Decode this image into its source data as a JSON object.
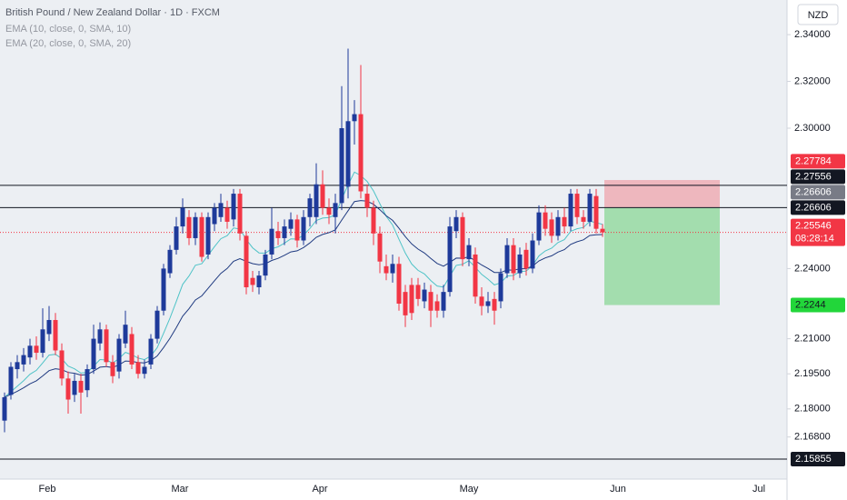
{
  "chart_data": {
    "type": "candlestick",
    "title": "British Pound / New Zealand Dollar · 1D · FXCM",
    "indicators": [
      {
        "name": "EMA (10, close, 0, SMA, 10)",
        "color": "#4fc3c7",
        "period": 10
      },
      {
        "name": "EMA (20, close, 0, SMA, 20)",
        "color": "#1f3a80",
        "period": 20
      }
    ],
    "currency": "NZD",
    "up_color": "#1e3a9a",
    "down_color": "#f23645",
    "ylim": [
      2.15,
      2.3548
    ],
    "yticks": [
      {
        "value": 2.34,
        "label": "2.34000"
      },
      {
        "value": 2.32,
        "label": "2.32000"
      },
      {
        "value": 2.3,
        "label": "2.30000"
      },
      {
        "value": 2.24,
        "label": "2.24000"
      },
      {
        "value": 2.21,
        "label": "2.21000"
      },
      {
        "value": 2.195,
        "label": "2.19500"
      },
      {
        "value": 2.18,
        "label": "2.18000"
      },
      {
        "value": 2.168,
        "label": "2.16800"
      }
    ],
    "x_labels": [
      "Feb",
      "Mar",
      "Apr",
      "May",
      "Jun",
      "Jul"
    ],
    "open": [
      2.175,
      2.186,
      2.197,
      2.199,
      2.202,
      2.207,
      2.204,
      2.212,
      2.218,
      2.205,
      2.193,
      2.186,
      2.192,
      2.188,
      2.197,
      2.208,
      2.214,
      2.2,
      2.196,
      2.208,
      2.212,
      2.2,
      2.195,
      2.199,
      2.21,
      2.222,
      2.238,
      2.248,
      2.258,
      2.262,
      2.253,
      2.262,
      2.246,
      2.259,
      2.262,
      2.266,
      2.261,
      2.272,
      2.254,
      2.236,
      2.232,
      2.237,
      2.246,
      2.256,
      2.253,
      2.257,
      2.261,
      2.252,
      2.262,
      2.262,
      2.276,
      2.266,
      2.262,
      2.268,
      2.275,
      2.303,
      2.306,
      2.272,
      2.266,
      2.255,
      2.241,
      2.238,
      2.242,
      2.23,
      2.233,
      2.233,
      2.226,
      2.23,
      2.226,
      2.222,
      2.23,
      2.256,
      2.262,
      2.244,
      2.246,
      2.228,
      2.224,
      2.227,
      2.226,
      2.238,
      2.25,
      2.238,
      2.248,
      2.24,
      2.252,
      2.264,
      2.261,
      2.254,
      2.262,
      2.258,
      2.272,
      2.262,
      2.26,
      2.271,
      2.257
    ],
    "high": [
      2.187,
      2.2,
      2.203,
      2.206,
      2.21,
      2.211,
      2.223,
      2.224,
      2.221,
      2.208,
      2.196,
      2.195,
      2.195,
      2.199,
      2.216,
      2.217,
      2.216,
      2.203,
      2.212,
      2.222,
      2.215,
      2.203,
      2.201,
      2.212,
      2.224,
      2.242,
      2.25,
      2.262,
      2.27,
      2.265,
      2.264,
      2.264,
      2.264,
      2.268,
      2.272,
      2.269,
      2.274,
      2.274,
      2.256,
      2.239,
      2.239,
      2.248,
      2.266,
      2.26,
      2.261,
      2.264,
      2.263,
      2.265,
      2.272,
      2.285,
      2.282,
      2.27,
      2.272,
      2.318,
      2.334,
      2.312,
      2.327,
      2.276,
      2.269,
      2.258,
      2.246,
      2.246,
      2.245,
      2.233,
      2.236,
      2.236,
      2.234,
      2.233,
      2.229,
      2.233,
      2.262,
      2.265,
      2.264,
      2.253,
      2.249,
      2.232,
      2.23,
      2.23,
      2.24,
      2.253,
      2.253,
      2.249,
      2.251,
      2.255,
      2.267,
      2.267,
      2.264,
      2.265,
      2.266,
      2.274,
      2.274,
      2.265,
      2.274,
      2.274,
      2.259
    ],
    "low": [
      2.17,
      2.184,
      2.193,
      2.196,
      2.199,
      2.201,
      2.202,
      2.209,
      2.203,
      2.19,
      2.178,
      2.183,
      2.178,
      2.185,
      2.195,
      2.205,
      2.198,
      2.191,
      2.193,
      2.206,
      2.197,
      2.193,
      2.193,
      2.197,
      2.208,
      2.22,
      2.236,
      2.246,
      2.255,
      2.25,
      2.25,
      2.243,
      2.244,
      2.256,
      2.26,
      2.257,
      2.258,
      2.252,
      2.229,
      2.23,
      2.229,
      2.235,
      2.244,
      2.25,
      2.25,
      2.254,
      2.249,
      2.25,
      2.258,
      2.259,
      2.263,
      2.259,
      2.255,
      2.265,
      2.27,
      2.293,
      2.27,
      2.262,
      2.25,
      2.238,
      2.235,
      2.234,
      2.222,
      2.215,
      2.218,
      2.224,
      2.223,
      2.215,
      2.219,
      2.219,
      2.228,
      2.253,
      2.241,
      2.241,
      2.225,
      2.22,
      2.221,
      2.216,
      2.223,
      2.236,
      2.235,
      2.236,
      2.237,
      2.238,
      2.25,
      2.254,
      2.251,
      2.252,
      2.255,
      2.256,
      2.259,
      2.257,
      2.258,
      2.255,
      2.2535
    ],
    "close": [
      2.185,
      2.198,
      2.2,
      2.203,
      2.207,
      2.204,
      2.214,
      2.218,
      2.205,
      2.193,
      2.184,
      2.192,
      2.187,
      2.197,
      2.21,
      2.214,
      2.2,
      2.194,
      2.21,
      2.216,
      2.199,
      2.195,
      2.198,
      2.21,
      2.222,
      2.24,
      2.248,
      2.258,
      2.266,
      2.253,
      2.262,
      2.245,
      2.262,
      2.266,
      2.268,
      2.26,
      2.272,
      2.255,
      2.232,
      2.233,
      2.237,
      2.246,
      2.257,
      2.253,
      2.258,
      2.261,
      2.252,
      2.262,
      2.27,
      2.276,
      2.266,
      2.263,
      2.268,
      2.3,
      2.303,
      2.306,
      2.273,
      2.266,
      2.255,
      2.243,
      2.238,
      2.242,
      2.225,
      2.22,
      2.221,
      2.227,
      2.231,
      2.222,
      2.222,
      2.23,
      2.258,
      2.262,
      2.244,
      2.25,
      2.228,
      2.224,
      2.226,
      2.222,
      2.238,
      2.25,
      2.238,
      2.246,
      2.24,
      2.252,
      2.264,
      2.257,
      2.254,
      2.262,
      2.258,
      2.272,
      2.262,
      2.26,
      2.272,
      2.257,
      2.25546
    ],
    "price_tags": [
      {
        "value": 2.27784,
        "color": "#f23645"
      },
      {
        "value": 2.27556,
        "color": "#131722",
        "line": "solid"
      },
      {
        "value": 2.26606,
        "color": "#787b86"
      },
      {
        "value": 2.26606,
        "color": "#131722",
        "line": "solid"
      },
      {
        "value": 2.25546,
        "color": "#f23645",
        "line": "dotted",
        "countdown": "08:28:14"
      },
      {
        "value": 2.2244,
        "color": "#22d63a"
      },
      {
        "value": 2.15855,
        "color": "#131722",
        "line": "solid"
      }
    ]
  }
}
